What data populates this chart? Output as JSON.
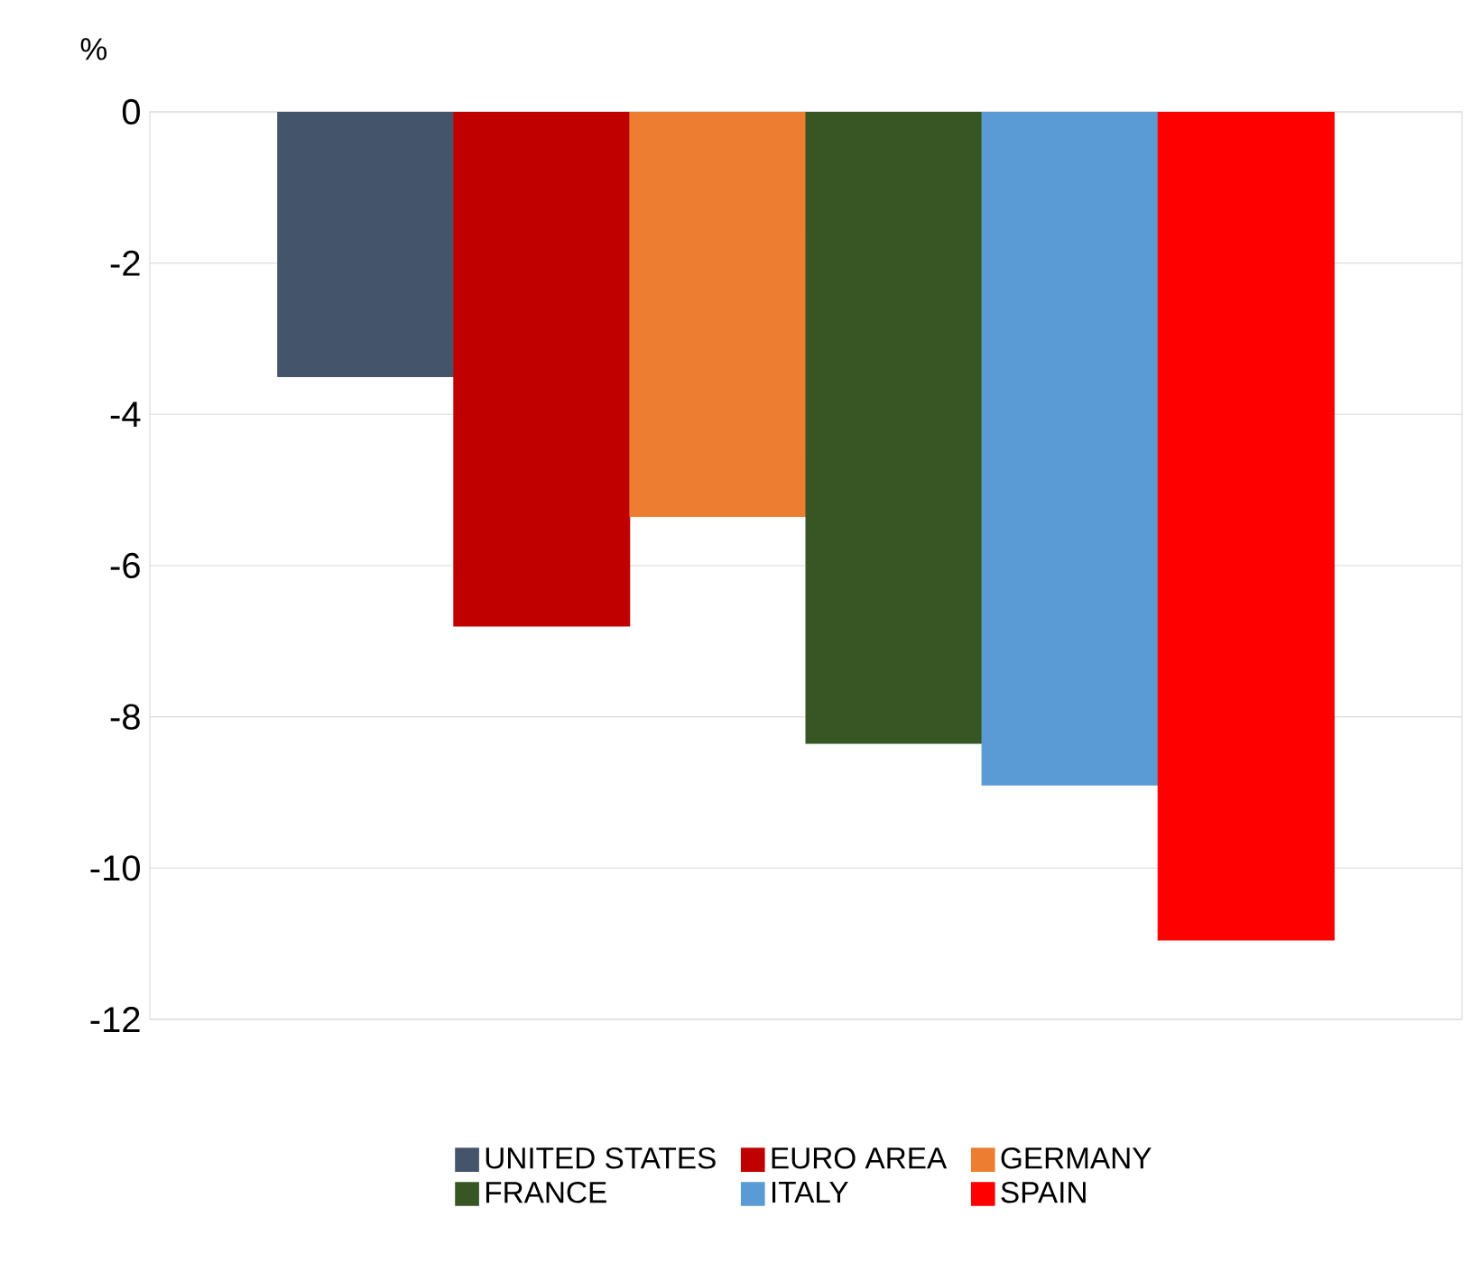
{
  "chart_data": {
    "type": "bar",
    "ylabel": "%",
    "categories": [
      null
    ],
    "series": [
      {
        "name": "UNITED STATES",
        "color": "#44546a",
        "values": [
          -3.5
        ]
      },
      {
        "name": "EURO AREA",
        "color": "#c00000",
        "values": [
          -6.8
        ]
      },
      {
        "name": "GERMANY",
        "color": "#ed7d31",
        "values": [
          -5.35
        ]
      },
      {
        "name": "FRANCE",
        "color": "#375623",
        "values": [
          -8.35
        ]
      },
      {
        "name": "ITALY",
        "color": "#5b9bd5",
        "values": [
          -8.9
        ]
      },
      {
        "name": "SPAIN",
        "color": "#ff0000",
        "values": [
          -10.95
        ]
      }
    ],
    "ylim": [
      -12,
      0
    ],
    "yticks": [
      -12,
      -10,
      -8,
      -6,
      -4,
      -2,
      0
    ],
    "grid": "y",
    "legend": "bottom"
  }
}
